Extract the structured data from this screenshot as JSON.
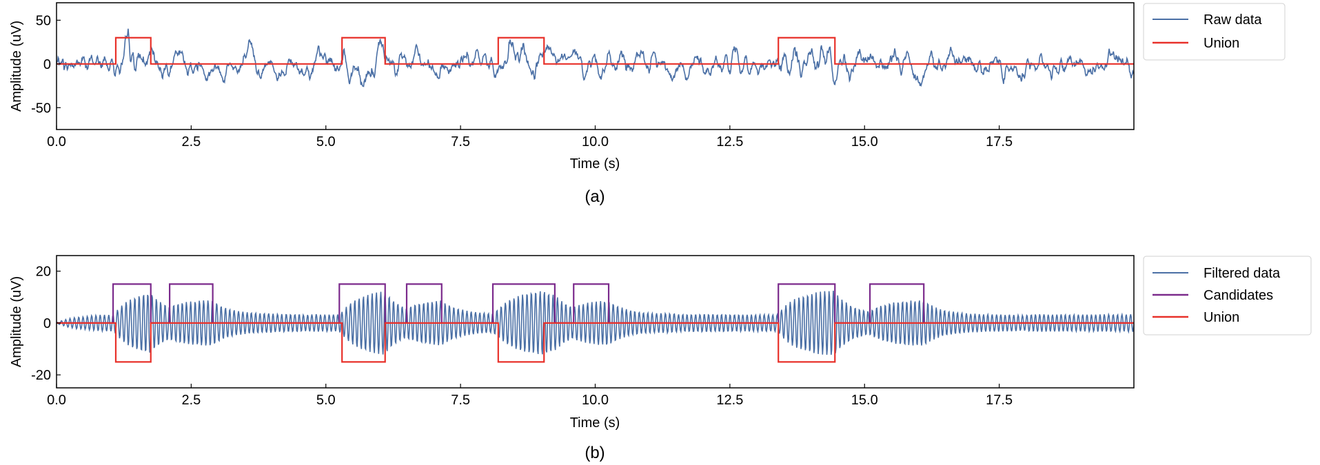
{
  "chart_data": [
    {
      "panel": "a",
      "type": "line",
      "caption": "(a)",
      "xlabel": "Time (s)",
      "ylabel": "Amplitude (uV)",
      "xlim": [
        0,
        20
      ],
      "ylim": [
        -75,
        70
      ],
      "xticks": [
        0.0,
        2.5,
        5.0,
        7.5,
        10.0,
        12.5,
        15.0,
        17.5
      ],
      "xtick_labels": [
        "0.0",
        "2.5",
        "5.0",
        "7.5",
        "10.0",
        "12.5",
        "15.0",
        "17.5"
      ],
      "yticks": [
        50,
        0,
        -50
      ],
      "ytick_labels": [
        "50",
        "0",
        "-50"
      ],
      "grid": false,
      "legend_position": "outside-top-right",
      "series": [
        {
          "name": "Raw data",
          "color": "#4a6fa5",
          "kind": "signal",
          "baseline_amplitude": 20,
          "burst_amplitude": 30
        },
        {
          "name": "Union",
          "color": "#e8312a",
          "kind": "step",
          "level": 30,
          "intervals": [
            [
              1.1,
              1.75
            ],
            [
              5.3,
              6.1
            ],
            [
              8.2,
              9.05
            ],
            [
              13.4,
              14.45
            ]
          ]
        }
      ]
    },
    {
      "panel": "b",
      "type": "line",
      "caption": "(b)",
      "xlabel": "Time (s)",
      "ylabel": "Amplitude (uV)",
      "xlim": [
        0,
        20
      ],
      "ylim": [
        -25,
        26
      ],
      "xticks": [
        0.0,
        2.5,
        5.0,
        7.5,
        10.0,
        12.5,
        15.0,
        17.5
      ],
      "xtick_labels": [
        "0.0",
        "2.5",
        "5.0",
        "7.5",
        "10.0",
        "12.5",
        "15.0",
        "17.5"
      ],
      "yticks": [
        20,
        0,
        -20
      ],
      "ytick_labels": [
        "20",
        "0",
        "-20"
      ],
      "grid": false,
      "legend_position": "outside-top-right",
      "series": [
        {
          "name": "Filtered data",
          "color": "#4a6fa5",
          "kind": "signal",
          "baseline_amplitude": 3,
          "burst_amplitude": 13
        },
        {
          "name": "Candidates",
          "color": "#7b2a8c",
          "kind": "step",
          "level": 15,
          "intervals": [
            [
              1.05,
              1.75
            ],
            [
              2.1,
              2.9
            ],
            [
              5.25,
              6.1
            ],
            [
              6.5,
              7.15
            ],
            [
              8.1,
              9.25
            ],
            [
              9.6,
              10.25
            ],
            [
              13.4,
              14.45
            ],
            [
              15.1,
              16.1
            ]
          ]
        },
        {
          "name": "Union",
          "color": "#e8312a",
          "kind": "step",
          "level": -15,
          "intervals": [
            [
              1.1,
              1.75
            ],
            [
              5.3,
              6.1
            ],
            [
              8.2,
              9.05
            ],
            [
              13.4,
              14.45
            ]
          ]
        }
      ]
    }
  ]
}
